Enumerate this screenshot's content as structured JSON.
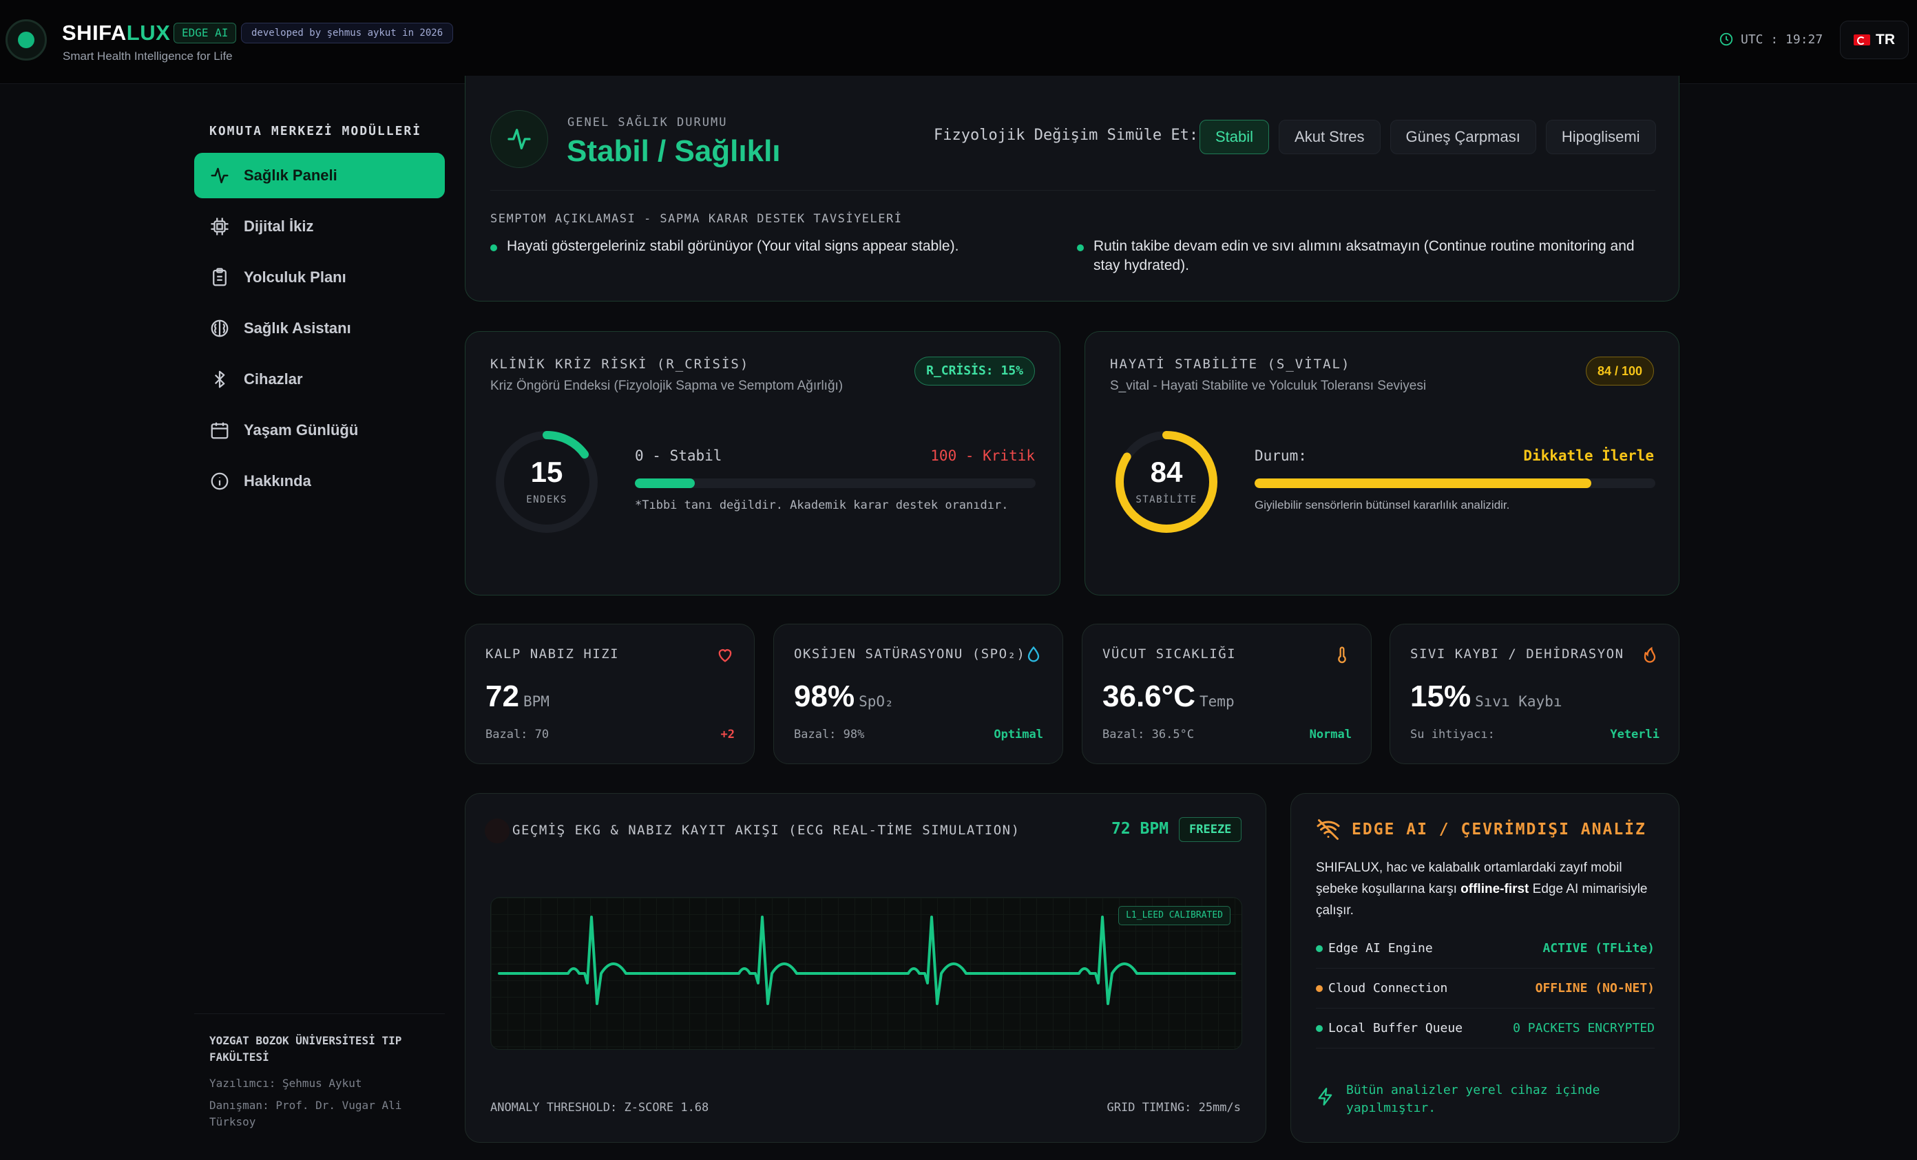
{
  "header": {
    "brand_a": "SHIFA",
    "brand_b": "LUX",
    "edge_badge": "EDGE AI",
    "dev_badge": "developed by şehmus aykut in 2026",
    "tagline": "Smart Health Intelligence for Life",
    "utc": "UTC : 19:27",
    "lang": "TR"
  },
  "sidebar": {
    "title": "KOMUTA MERKEZİ MODÜLLERİ",
    "items": [
      {
        "label": "Sağlık Paneli",
        "icon": "pulse-icon"
      },
      {
        "label": "Dijital İkiz",
        "icon": "cpu-icon"
      },
      {
        "label": "Yolculuk Planı",
        "icon": "clipboard-icon"
      },
      {
        "label": "Sağlık Asistanı",
        "icon": "brain-icon"
      },
      {
        "label": "Cihazlar",
        "icon": "bluetooth-icon"
      },
      {
        "label": "Yaşam Günlüğü",
        "icon": "calendar-icon"
      },
      {
        "label": "Hakkında",
        "icon": "info-icon"
      }
    ],
    "foot_title": "YOZGAT BOZOK ÜNİVERSİTESİ TIP FAKÜLTESİ",
    "foot_dev": "Yazılımcı: Şehmus Aykut",
    "foot_adv": "Danışman: Prof. Dr. Vugar Ali Türksoy"
  },
  "status": {
    "label": "GENEL SAĞLIK DURUMU",
    "value": "Stabil / Sağlıklı",
    "sim_label": "Fizyolojik Değişim Simüle Et:",
    "sim_buttons": [
      "Stabil",
      "Akut Stres",
      "Güneş Çarpması",
      "Hipoglisemi"
    ],
    "symptom_title": "SEMPTOM AÇIKLAMASI - SAPMA KARAR DESTEK TAVSİYELERİ",
    "symptoms": [
      "Hayati göstergeleriniz stabil görünüyor (Your vital signs appear stable).",
      "Rutin takibe devam edin ve sıvı alımını aksatmayın (Continue routine monitoring and stay hydrated)."
    ]
  },
  "crisis": {
    "title": "KLİNİK KRİZ RİSKİ (R_CRİSİS)",
    "subtitle": "Kriz Öngörü Endeksi (Fizyolojik Sapma ve Semptom Ağırlığı)",
    "badge": "R_CRİSİS: 15%",
    "value": 15,
    "value_label": "ENDEKS",
    "scale_min": "0 - Stabil",
    "scale_max": "100 - Kritik",
    "note": "*Tıbbi tanı değildir. Akademik karar destek oranıdır.",
    "color": "#17c684"
  },
  "vital_stab": {
    "title": "HAYATİ STABİLİTE (S_VİTAL)",
    "subtitle": "S_vital - Hayati Stabilite ve Yolculuk Toleransı Seviyesi",
    "badge": "84 / 100",
    "value": 84,
    "value_label": "STABİLİTE",
    "status_label": "Durum:",
    "status_value": "Dikkatle İlerle",
    "note": "Giyilebilir sensörlerin bütünsel kararlılık analizidir.",
    "color": "#f7c518"
  },
  "vitals": [
    {
      "title": "KALP NABIZ HIZI",
      "value": "72",
      "unit": "BPM",
      "base": "Bazal: 70",
      "stat": "+2",
      "stat_color": "#ef4a4a",
      "icon": "heart-icon"
    },
    {
      "title": "OKSİJEN SATÜRASYONU (SPO₂)",
      "value": "98%",
      "unit": "SpO₂",
      "base": "Bazal: 98%",
      "stat": "Optimal",
      "stat_color": "#22c98c",
      "icon": "droplet-icon"
    },
    {
      "title": "VÜCUT SICAKLIĞI",
      "value": "36.6°C",
      "unit": "Temp",
      "base": "Bazal: 36.5°C",
      "stat": "Normal",
      "stat_color": "#22c98c",
      "icon": "thermometer-icon"
    },
    {
      "title": "SIVI KAYBI / DEHİDRASYON",
      "value": "15%",
      "unit": "Sıvı Kaybı",
      "base": "Su ihtiyacı:",
      "stat": "Yeterli",
      "stat_color": "#22c98c",
      "icon": "flame-icon"
    }
  ],
  "ecg": {
    "title": "GEÇMİŞ EKG & NABIZ KAYIT AKIŞI (ECG REAL-TİME SIMULATION)",
    "bpm": "72 BPM",
    "freeze": "FREEZE",
    "calib": "L1_LEED CALIBRATED",
    "threshold": "ANOMALY THRESHOLD: Z-SCORE 1.68",
    "timing": "GRID TIMING: 25mm/s"
  },
  "edge": {
    "title": "EDGE AI / ÇEVRİMDIŞI ANALİZ",
    "desc_a": "SHIFALUX, hac ve kalabalık ortamlardaki zayıf mobil şebeke koşullarına karşı ",
    "desc_b": "offline-first",
    "desc_c": " Edge AI mimarisiyle çalışır.",
    "rows": [
      {
        "k": "Edge AI Engine",
        "v": "ACTIVE (TFLite)",
        "color": "#22c98c"
      },
      {
        "k": "Cloud Connection",
        "v": "OFFLINE (NO-NET)",
        "color": "#f29a3a"
      },
      {
        "k": "Local Buffer Queue",
        "v": "0 PACKETS ENCRYPTED",
        "color": "#22c98c"
      }
    ],
    "foot": "Bütün analizler yerel cihaz içinde yapılmıştır."
  }
}
